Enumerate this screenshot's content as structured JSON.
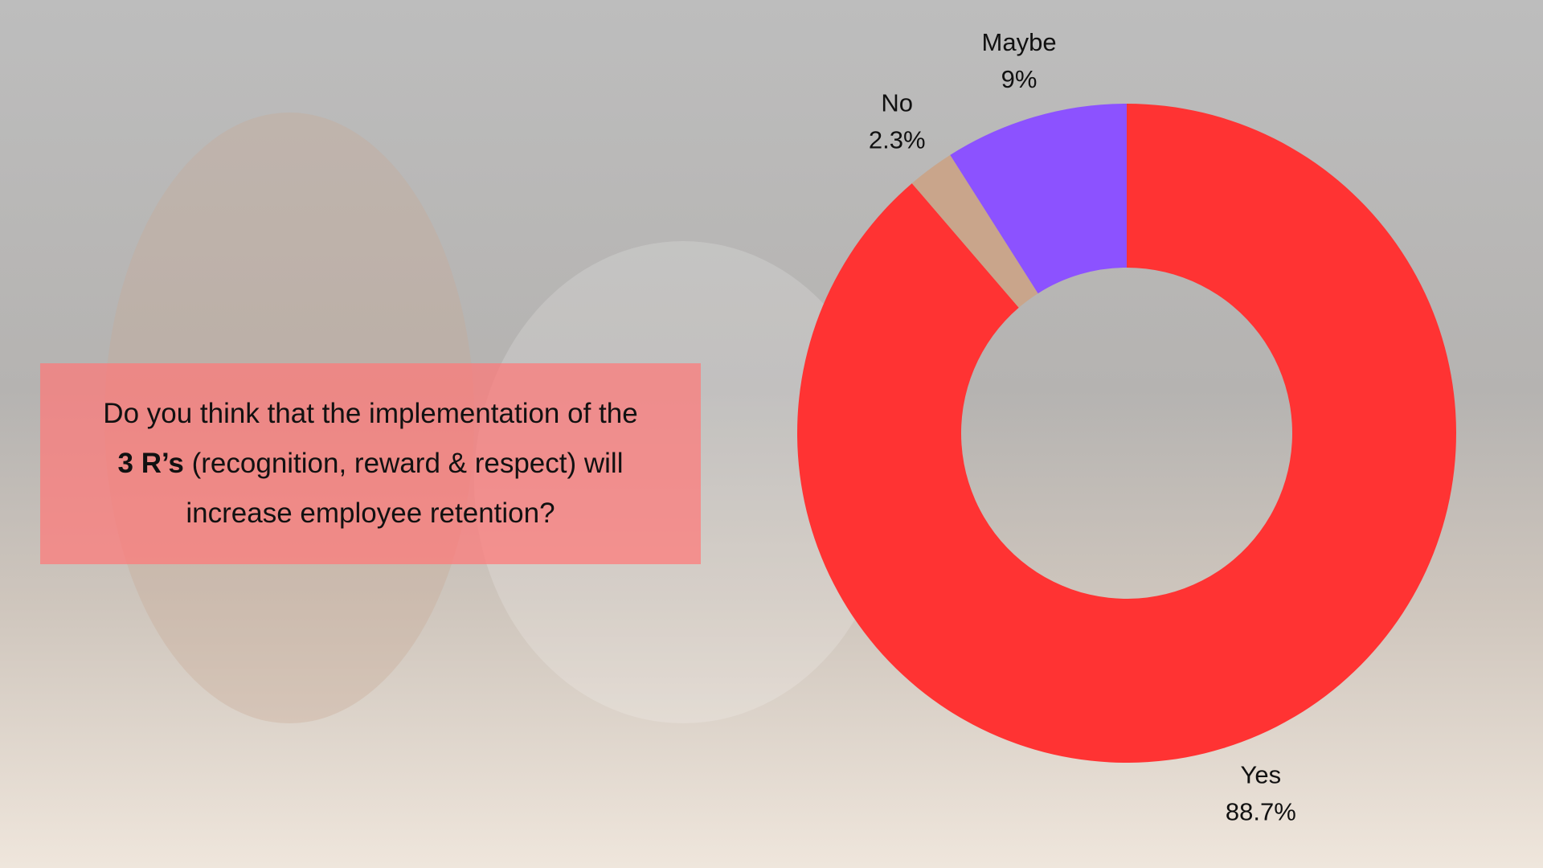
{
  "chart_data": {
    "type": "pie",
    "title": [
      "Do you think that the implementation of the",
      "3 R’s",
      "(recognition, reward & respect) will",
      "increase employee retention?"
    ],
    "categories": [
      "Yes",
      "No",
      "Maybe"
    ],
    "values": [
      88.7,
      2.3,
      9
    ],
    "value_labels": [
      "88.7%",
      "2.3%",
      "9%"
    ],
    "colors": [
      "#ff3333",
      "#c9a58b",
      "#8c52ff"
    ],
    "donut": true
  }
}
